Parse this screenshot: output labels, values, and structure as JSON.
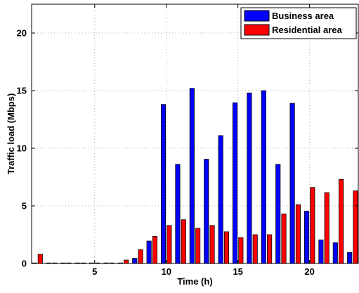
{
  "chart_data": {
    "type": "bar",
    "xlabel": "Time (h)",
    "ylabel": "Traffic load (Mbps)",
    "x": [
      1,
      2,
      3,
      4,
      5,
      6,
      7,
      8,
      9,
      10,
      11,
      12,
      13,
      14,
      15,
      16,
      17,
      18,
      19,
      20,
      21,
      22,
      23
    ],
    "xlim": [
      0.6,
      23.4
    ],
    "ylim": [
      0,
      22.5
    ],
    "xticks": [
      5,
      10,
      15,
      20
    ],
    "yticks": [
      0,
      5,
      10,
      15,
      20
    ],
    "grid": true,
    "legend_position": "top-right",
    "series": [
      {
        "name": "Business area",
        "color": "#0000ff",
        "values": [
          0,
          0.05,
          0.05,
          0.05,
          0.05,
          0.05,
          0.05,
          0.45,
          1.95,
          13.8,
          8.6,
          15.2,
          9.05,
          11.1,
          13.95,
          14.8,
          15.0,
          8.6,
          13.9,
          4.55,
          2.05,
          1.8,
          0.95
        ]
      },
      {
        "name": "Residential area",
        "color": "#ff0000",
        "values": [
          0.8,
          0.05,
          0.05,
          0.05,
          0.05,
          0.05,
          0.3,
          1.2,
          2.35,
          3.3,
          3.8,
          3.05,
          3.3,
          2.75,
          2.25,
          2.5,
          2.5,
          4.3,
          5.1,
          6.6,
          6.15,
          7.3,
          6.3
        ]
      }
    ]
  }
}
